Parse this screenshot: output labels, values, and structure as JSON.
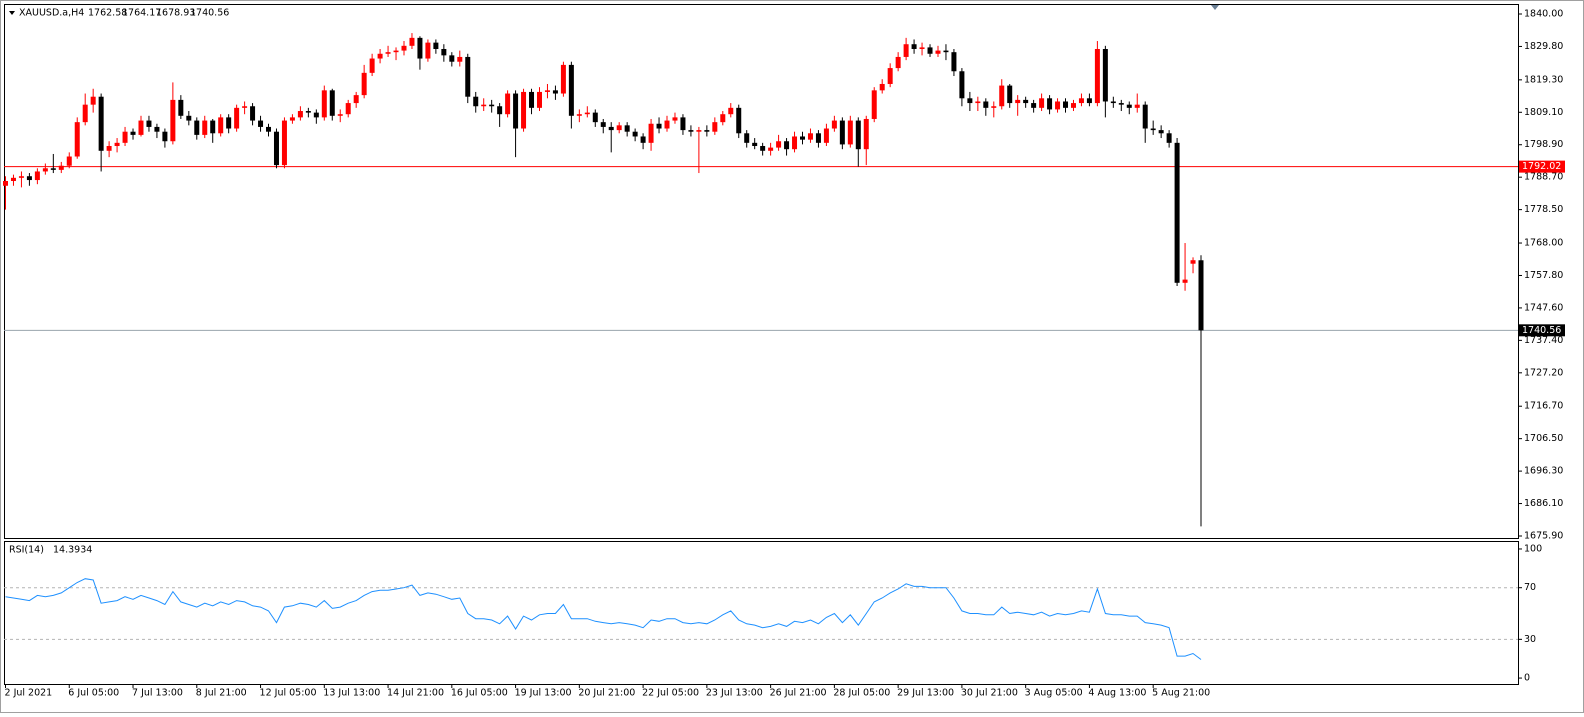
{
  "chart_data": [
    {
      "type": "candlestick",
      "symbol": "XAUUSD.a,H4",
      "up_color": "#ff0000",
      "down_color": "#000000",
      "level": 1792.02,
      "level_color": "#ff0000",
      "last_line_color": "#9aa4ad",
      "categories": [
        "2 Jul 2021",
        null,
        null,
        null,
        null,
        null,
        null,
        null,
        "6 Jul 05:00",
        null,
        null,
        null,
        null,
        null,
        null,
        null,
        "7 Jul 13:00",
        null,
        null,
        null,
        null,
        null,
        null,
        null,
        "8 Jul 21:00",
        null,
        null,
        null,
        null,
        null,
        null,
        null,
        "12 Jul 05:00",
        null,
        null,
        null,
        null,
        null,
        null,
        null,
        "13 Jul 13:00",
        null,
        null,
        null,
        null,
        null,
        null,
        null,
        "14 Jul 21:00",
        null,
        null,
        null,
        null,
        null,
        null,
        null,
        "16 Jul 05:00",
        null,
        null,
        null,
        null,
        null,
        null,
        null,
        "19 Jul 13:00",
        null,
        null,
        null,
        null,
        null,
        null,
        null,
        "20 Jul 21:00",
        null,
        null,
        null,
        null,
        null,
        null,
        null,
        "22 Jul 05:00",
        null,
        null,
        null,
        null,
        null,
        null,
        null,
        "23 Jul 13:00",
        null,
        null,
        null,
        null,
        null,
        null,
        null,
        "26 Jul 21:00",
        null,
        null,
        null,
        null,
        null,
        null,
        null,
        "28 Jul 05:00",
        null,
        null,
        null,
        null,
        null,
        null,
        null,
        "29 Jul 13:00",
        null,
        null,
        null,
        null,
        null,
        null,
        null,
        "30 Jul 21:00",
        null,
        null,
        null,
        null,
        null,
        null,
        null,
        "3 Aug 05:00",
        null,
        null,
        null,
        null,
        null,
        null,
        null,
        "4 Aug 13:00",
        null,
        null,
        null,
        null,
        null,
        null,
        null,
        "5 Aug 21:00",
        null,
        null,
        null,
        null,
        null,
        null
      ],
      "open": [
        1786.0,
        1787.5,
        1788.5,
        1789.0,
        1787.8,
        1790.5,
        1791.5,
        1791.0,
        1792.3,
        1795.2,
        1806.0,
        1811.5,
        1814.0,
        1797.0,
        1798.5,
        1799.5,
        1803.0,
        1802.0,
        1806.5,
        1804.5,
        1803.0,
        1800.0,
        1813.0,
        1808.0,
        1806.5,
        1802.0,
        1806.5,
        1802.5,
        1807.5,
        1804.0,
        1810.5,
        1811.0,
        1806.5,
        1804.5,
        1803.0,
        1792.5,
        1806.5,
        1807.5,
        1809.5,
        1809.0,
        1807.5,
        1816.0,
        1808.0,
        1808.5,
        1812.0,
        1814.5,
        1821.5,
        1826.0,
        1827.5,
        1828.0,
        1828.5,
        1830.0,
        1832.5,
        1826.0,
        1831.0,
        1829.0,
        1827.0,
        1825.0,
        1826.5,
        1814.0,
        1811.0,
        1811.5,
        1811.0,
        1808.5,
        1815.0,
        1804.0,
        1815.5,
        1810.5,
        1815.5,
        1816.0,
        1815.0,
        1824.0,
        1808.0,
        1808.5,
        1809.0,
        1806.0,
        1804.5,
        1803.5,
        1805.0,
        1803.0,
        1801.5,
        1799.5,
        1805.5,
        1804.0,
        1806.5,
        1807.5,
        1803.5,
        1803.0,
        1803.5,
        1803.0,
        1806.0,
        1808.5,
        1810.5,
        1802.5,
        1799.5,
        1798.5,
        1797.0,
        1798.0,
        1800.0,
        1797.5,
        1801.5,
        1800.5,
        1802.5,
        1799.5,
        1804.0,
        1806.5,
        1799.0,
        1806.5,
        1797.5,
        1807.0,
        1816.0,
        1818.0,
        1823.0,
        1826.5,
        1830.5,
        1829.0,
        1829.5,
        1827.5,
        1828.5,
        1828.0,
        1822.0,
        1813.5,
        1812.0,
        1812.5,
        1810.5,
        1811.0,
        1817.5,
        1812.0,
        1813.0,
        1812.0,
        1810.5,
        1813.5,
        1810.0,
        1812.5,
        1810.5,
        1812.0,
        1813.5,
        1812.0,
        1829.0,
        1812.5,
        1812.0,
        1811.5,
        1810.5,
        1811.5,
        1804.0,
        1803.5,
        1802.5,
        1799.5,
        1755.5,
        1761.5,
        1762.58
      ],
      "high": [
        1789.0,
        1789.5,
        1790.5,
        1790.0,
        1791.5,
        1793.0,
        1796.0,
        1793.5,
        1796.5,
        1807.5,
        1815.0,
        1816.5,
        1815.0,
        1800.0,
        1801.0,
        1804.5,
        1804.0,
        1808.0,
        1808.0,
        1805.5,
        1804.0,
        1818.5,
        1814.5,
        1809.5,
        1807.5,
        1808.0,
        1807.0,
        1808.5,
        1808.5,
        1811.5,
        1812.5,
        1812.0,
        1808.0,
        1805.5,
        1804.0,
        1807.5,
        1808.5,
        1811.0,
        1810.5,
        1810.0,
        1817.5,
        1816.5,
        1810.0,
        1813.0,
        1815.5,
        1824.0,
        1827.5,
        1829.0,
        1830.0,
        1829.5,
        1831.5,
        1834.0,
        1833.0,
        1832.0,
        1832.0,
        1830.5,
        1828.0,
        1828.5,
        1827.5,
        1815.5,
        1813.5,
        1813.0,
        1812.0,
        1816.0,
        1816.0,
        1816.5,
        1816.5,
        1817.0,
        1818.0,
        1817.5,
        1825.0,
        1825.0,
        1810.0,
        1811.0,
        1810.0,
        1807.0,
        1806.0,
        1806.0,
        1806.0,
        1804.0,
        1802.5,
        1807.0,
        1807.5,
        1808.0,
        1809.0,
        1808.5,
        1805.0,
        1804.5,
        1805.0,
        1807.5,
        1809.5,
        1812.0,
        1811.5,
        1803.5,
        1801.0,
        1799.5,
        1799.5,
        1802.0,
        1801.0,
        1803.0,
        1803.0,
        1804.0,
        1803.5,
        1805.5,
        1808.0,
        1807.5,
        1808.0,
        1807.5,
        1808.0,
        1817.0,
        1819.5,
        1824.5,
        1828.0,
        1832.5,
        1832.0,
        1831.0,
        1830.5,
        1830.0,
        1830.5,
        1829.0,
        1823.0,
        1815.5,
        1814.0,
        1813.5,
        1812.5,
        1819.5,
        1818.0,
        1814.5,
        1814.0,
        1813.0,
        1815.0,
        1814.5,
        1813.5,
        1813.5,
        1813.0,
        1815.0,
        1815.0,
        1831.5,
        1830.0,
        1814.0,
        1813.0,
        1812.5,
        1815.0,
        1812.5,
        1806.5,
        1805.0,
        1803.5,
        1801.0,
        1768.0,
        1763.5,
        1764.17
      ],
      "low": [
        1778.5,
        1786.0,
        1785.5,
        1786.0,
        1786.5,
        1789.5,
        1790.0,
        1790.0,
        1791.5,
        1794.5,
        1805.0,
        1809.0,
        1790.5,
        1795.0,
        1796.5,
        1798.5,
        1800.5,
        1801.5,
        1803.0,
        1801.0,
        1798.0,
        1799.0,
        1807.0,
        1805.0,
        1800.5,
        1801.0,
        1799.5,
        1801.5,
        1802.5,
        1803.0,
        1808.5,
        1805.0,
        1803.0,
        1801.5,
        1791.5,
        1791.5,
        1805.5,
        1806.5,
        1807.5,
        1805.5,
        1806.5,
        1806.5,
        1806.0,
        1807.5,
        1810.5,
        1813.5,
        1820.5,
        1824.5,
        1826.5,
        1825.5,
        1827.0,
        1829.0,
        1822.5,
        1825.0,
        1827.5,
        1825.0,
        1823.5,
        1823.5,
        1812.0,
        1809.0,
        1809.5,
        1809.0,
        1804.5,
        1807.5,
        1795.0,
        1803.0,
        1808.5,
        1809.5,
        1813.5,
        1813.0,
        1814.0,
        1804.0,
        1806.0,
        1807.5,
        1804.5,
        1802.5,
        1796.5,
        1802.5,
        1801.5,
        1800.0,
        1797.5,
        1797.0,
        1802.5,
        1803.0,
        1805.5,
        1802.0,
        1801.5,
        1790.0,
        1801.5,
        1802.0,
        1805.0,
        1807.5,
        1801.0,
        1798.0,
        1797.5,
        1795.5,
        1795.5,
        1797.0,
        1795.5,
        1796.5,
        1799.0,
        1799.5,
        1798.0,
        1798.5,
        1803.0,
        1797.5,
        1798.0,
        1792.0,
        1792.5,
        1806.0,
        1815.0,
        1817.0,
        1822.0,
        1825.5,
        1827.5,
        1827.0,
        1826.5,
        1826.5,
        1825.5,
        1820.5,
        1811.0,
        1809.5,
        1809.5,
        1808.0,
        1807.5,
        1810.0,
        1810.5,
        1808.0,
        1810.5,
        1809.0,
        1809.5,
        1808.5,
        1809.0,
        1809.0,
        1809.5,
        1811.0,
        1811.0,
        1811.0,
        1807.5,
        1810.5,
        1809.5,
        1808.5,
        1809.0,
        1799.5,
        1802.0,
        1801.0,
        1798.0,
        1754.5,
        1753.0,
        1758.5,
        1678.93
      ],
      "close": [
        1787.5,
        1788.5,
        1789.0,
        1787.8,
        1790.5,
        1791.5,
        1791.0,
        1792.3,
        1795.2,
        1806.0,
        1811.5,
        1814.0,
        1797.0,
        1798.5,
        1799.5,
        1803.0,
        1802.0,
        1806.5,
        1804.5,
        1803.0,
        1800.0,
        1813.0,
        1808.0,
        1806.5,
        1802.0,
        1806.5,
        1802.5,
        1807.5,
        1804.0,
        1810.5,
        1811.0,
        1806.5,
        1804.5,
        1803.0,
        1792.5,
        1806.5,
        1807.5,
        1809.5,
        1809.0,
        1807.5,
        1816.0,
        1808.0,
        1808.5,
        1812.0,
        1814.5,
        1821.5,
        1826.0,
        1827.5,
        1828.0,
        1828.5,
        1830.0,
        1832.5,
        1826.0,
        1831.0,
        1829.0,
        1827.0,
        1825.0,
        1826.5,
        1814.0,
        1811.0,
        1811.5,
        1811.0,
        1808.5,
        1815.0,
        1804.0,
        1815.5,
        1810.5,
        1815.5,
        1816.0,
        1815.0,
        1824.0,
        1808.0,
        1808.5,
        1809.0,
        1806.0,
        1804.5,
        1803.5,
        1805.0,
        1803.0,
        1801.5,
        1799.5,
        1805.5,
        1804.0,
        1806.5,
        1807.5,
        1803.5,
        1803.0,
        1803.5,
        1803.0,
        1806.0,
        1808.5,
        1810.5,
        1802.5,
        1799.5,
        1798.5,
        1797.0,
        1798.0,
        1800.0,
        1797.5,
        1801.5,
        1800.5,
        1802.5,
        1799.5,
        1804.0,
        1806.5,
        1799.0,
        1806.5,
        1797.5,
        1807.0,
        1816.0,
        1818.0,
        1823.0,
        1826.5,
        1830.5,
        1829.0,
        1829.5,
        1827.5,
        1828.5,
        1828.0,
        1822.0,
        1813.5,
        1812.0,
        1812.5,
        1810.5,
        1811.0,
        1817.5,
        1812.0,
        1813.0,
        1812.0,
        1810.5,
        1813.5,
        1810.0,
        1812.5,
        1810.5,
        1812.0,
        1813.5,
        1812.0,
        1829.0,
        1812.5,
        1812.0,
        1811.5,
        1810.5,
        1811.5,
        1804.0,
        1803.5,
        1802.5,
        1799.5,
        1755.5,
        1756.5,
        1762.6,
        1740.56
      ],
      "ylim": [
        1675.27,
        1842.83
      ],
      "yticks": [
        {
          "value": 1840,
          "label": "1840.00"
        },
        {
          "value": 1829.8,
          "label": "1829.80"
        },
        {
          "value": 1819.3,
          "label": "1819.30"
        },
        {
          "value": 1809.1,
          "label": "1809.10"
        },
        {
          "value": 1798.9,
          "label": "1798.90"
        },
        {
          "value": 1788.7,
          "label": "1788.70"
        },
        {
          "value": 1778.5,
          "label": "1778.50"
        },
        {
          "value": 1768,
          "label": "1768.00"
        },
        {
          "value": 1757.8,
          "label": "1757.80"
        },
        {
          "value": 1747.6,
          "label": "1747.60"
        },
        {
          "value": 1737.4,
          "label": "1737.40"
        },
        {
          "value": 1727.2,
          "label": "1727.20"
        },
        {
          "value": 1716.7,
          "label": "1716.70"
        },
        {
          "value": 1706.5,
          "label": "1706.50"
        },
        {
          "value": 1696.3,
          "label": "1696.30"
        },
        {
          "value": 1686.1,
          "label": "1686.10"
        },
        {
          "value": 1675.9,
          "label": "1675.90"
        }
      ]
    },
    {
      "type": "line",
      "name": "RSI(14)",
      "color": "#1e90ff",
      "values": [
        63,
        62,
        61,
        60,
        64,
        63,
        64,
        66,
        70,
        74,
        77,
        76,
        58,
        59,
        60,
        63,
        61,
        64,
        62,
        60,
        57,
        67,
        59,
        57,
        55,
        58,
        56,
        59,
        57,
        60,
        59,
        56,
        55,
        52,
        43,
        55,
        56,
        58,
        57,
        55,
        60,
        54,
        55,
        58,
        60,
        64,
        67,
        68,
        68,
        69,
        70,
        72,
        64,
        66,
        65,
        63,
        61,
        62,
        50,
        46,
        46,
        45,
        42,
        48,
        38,
        48,
        45,
        49,
        50,
        50,
        57,
        46,
        46,
        46,
        44,
        43,
        42,
        43,
        42,
        41,
        39,
        45,
        44,
        46,
        46,
        43,
        42,
        43,
        42,
        45,
        49,
        52,
        45,
        42,
        41,
        39,
        40,
        42,
        40,
        44,
        43,
        45,
        42,
        47,
        50,
        43,
        49,
        41,
        50,
        59,
        62,
        66,
        69,
        73,
        71,
        71,
        70,
        70,
        70,
        62,
        52,
        50,
        50,
        49,
        49,
        55,
        50,
        51,
        50,
        49,
        51,
        48,
        50,
        49,
        50,
        52,
        51,
        69,
        50,
        49,
        49,
        48,
        48,
        43,
        42,
        41,
        39,
        17,
        17,
        19,
        14.3934
      ],
      "levels": [
        30,
        70
      ],
      "ylim": [
        -4.6,
        105.4
      ],
      "yticks": [
        0,
        30,
        70,
        100
      ]
    }
  ]
}
